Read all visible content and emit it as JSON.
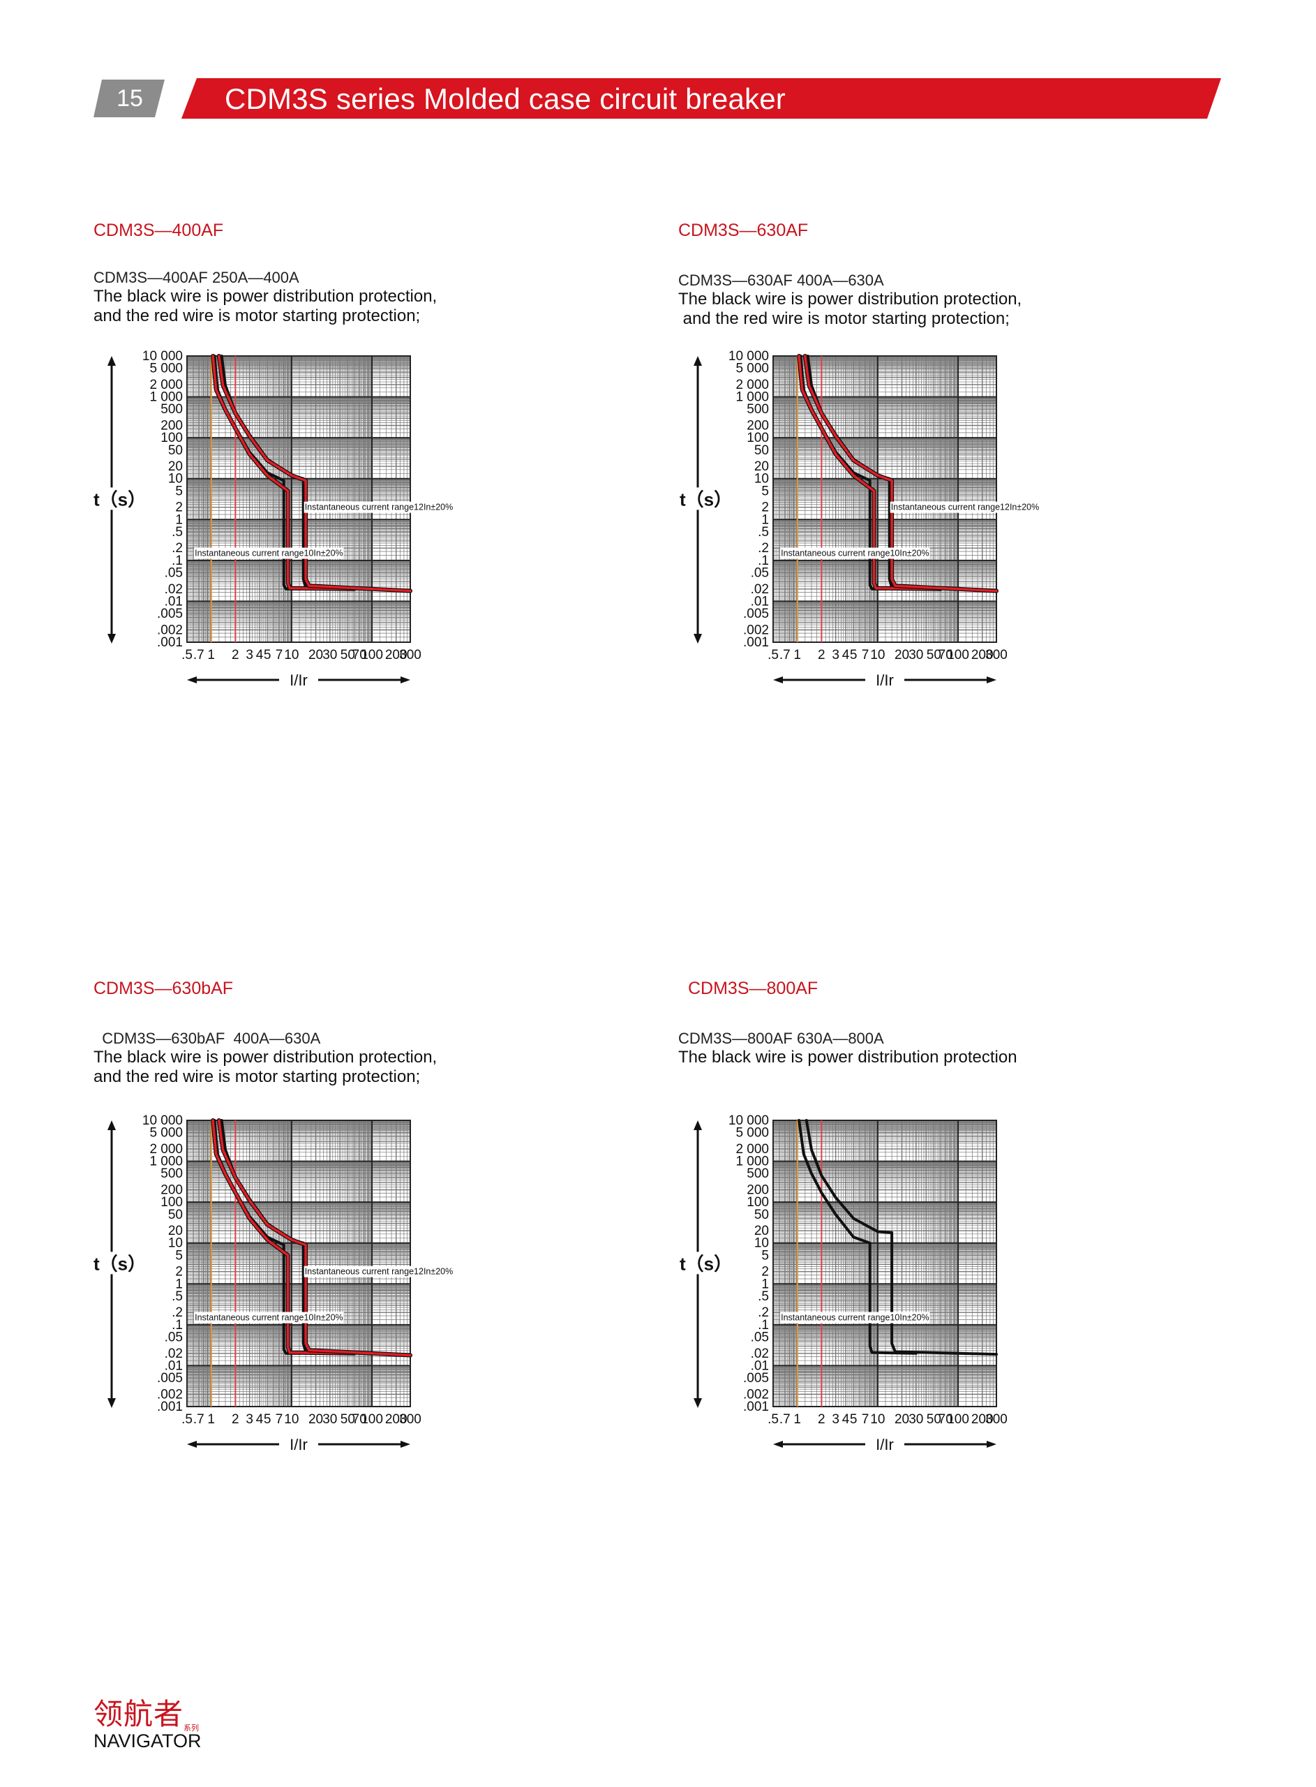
{
  "header": {
    "page_number": "15",
    "title": "CDM3S series Molded case circuit breaker",
    "accent_color": "#d7141f",
    "tab_color": "#8c8c8c"
  },
  "footer": {
    "logo_cn": "领航者",
    "logo_cn_small": "系列",
    "logo_en": "NAVIGATOR"
  },
  "sections": [
    {
      "title": "CDM3S—400AF",
      "model": "CDM3S—400AF   250A—400A",
      "desc_line1": "The black wire is power distribution protection,",
      "desc_line2": "and the red wire is motor starting protection;"
    },
    {
      "title": "CDM3S—630AF",
      "model": "CDM3S—630AF   400A—630A",
      "desc_line1": "The black wire is power distribution protection,",
      "desc_line2": " and the red wire is motor starting protection;"
    },
    {
      "title": "CDM3S—630bAF",
      "model": "  CDM3S—630bAF  400A—630A",
      "desc_line1": "The black wire is power distribution protection,",
      "desc_line2": "and the red wire is motor starting protection;"
    },
    {
      "title": "CDM3S—800AF",
      "model": "CDM3S—800AF   630A—800A",
      "desc_line1": "The black wire is power distribution protection",
      "desc_line2": ""
    }
  ],
  "chart_data": [
    {
      "type": "line",
      "title": "CDM3S—400AF",
      "xlabel": "I/Ir",
      "ylabel": "t（s）",
      "xscale": "log",
      "yscale": "log",
      "xlim": [
        0.5,
        300
      ],
      "ylim": [
        0.001,
        10000
      ],
      "x_ticks": [
        ".5",
        ".7",
        "1",
        "2",
        "3",
        "4",
        "5",
        "7",
        "10",
        "20",
        "30",
        "50",
        "70",
        "100",
        "200",
        "300"
      ],
      "y_ticks": [
        "10 000",
        "5 000",
        "2 000",
        "1 000",
        "500",
        "200",
        "100",
        "50",
        "20",
        "10",
        "5",
        "2",
        "1",
        ".5",
        ".2",
        ".1",
        ".05",
        ".02",
        ".01",
        ".005",
        ".002",
        ".001"
      ],
      "reference_lines": [
        {
          "x": 1,
          "color": "#e8a040"
        },
        {
          "x": 2,
          "color": "#e0404a"
        }
      ],
      "annotations": [
        {
          "text": "Instantaneous current range12In±20%",
          "x": 14,
          "y": 2
        },
        {
          "text": "Instantaneous current range10In±20%",
          "x": 0.6,
          "y": 0.15
        }
      ],
      "series": [
        {
          "name": "black lower",
          "color": "#111111",
          "points": [
            [
              1.1,
              10000
            ],
            [
              1.2,
              1500
            ],
            [
              1.5,
              500
            ],
            [
              2,
              180
            ],
            [
              3,
              45
            ],
            [
              5,
              14
            ],
            [
              8,
              9
            ],
            [
              8,
              0.025
            ],
            [
              8.5,
              0.02
            ],
            [
              13,
              0.02
            ]
          ]
        },
        {
          "name": "black upper",
          "color": "#111111",
          "points": [
            [
              1.35,
              10000
            ],
            [
              1.5,
              1900
            ],
            [
              2,
              420
            ],
            [
              3,
              120
            ],
            [
              5,
              30
            ],
            [
              10,
              12
            ],
            [
              14,
              10
            ],
            [
              14,
              0.035
            ],
            [
              15,
              0.022
            ],
            [
              60,
              0.02
            ]
          ]
        },
        {
          "name": "red lower",
          "color": "#e01e26",
          "points": [
            [
              1.05,
              10000
            ],
            [
              1.15,
              1500
            ],
            [
              1.5,
              480
            ],
            [
              2,
              170
            ],
            [
              3,
              40
            ],
            [
              5,
              12
            ],
            [
              9,
              5
            ],
            [
              9,
              0.028
            ],
            [
              9.5,
              0.021
            ],
            [
              60,
              0.02
            ]
          ]
        },
        {
          "name": "red upper",
          "color": "#e01e26",
          "points": [
            [
              1.25,
              10000
            ],
            [
              1.4,
              1900
            ],
            [
              2,
              400
            ],
            [
              3,
              110
            ],
            [
              5,
              28
            ],
            [
              10,
              12
            ],
            [
              15,
              9
            ],
            [
              15,
              0.035
            ],
            [
              16.5,
              0.024
            ],
            [
              300,
              0.018
            ]
          ]
        }
      ]
    },
    {
      "type": "line",
      "title": "CDM3S—630AF",
      "xlabel": "I/Ir",
      "ylabel": "t（s）",
      "xscale": "log",
      "yscale": "log",
      "xlim": [
        0.5,
        300
      ],
      "ylim": [
        0.001,
        10000
      ],
      "x_ticks": [
        ".5",
        ".7",
        "1",
        "2",
        "3",
        "4",
        "5",
        "7",
        "10",
        "20",
        "30",
        "50",
        "70",
        "100",
        "200",
        "300"
      ],
      "y_ticks": [
        "10 000",
        "5 000",
        "2 000",
        "1 000",
        "500",
        "200",
        "100",
        "50",
        "20",
        "10",
        "5",
        "2",
        "1",
        ".5",
        ".2",
        ".1",
        ".05",
        ".02",
        ".01",
        ".005",
        ".002",
        ".001"
      ],
      "reference_lines": [
        {
          "x": 1,
          "color": "#e8a040"
        },
        {
          "x": 2,
          "color": "#e0404a"
        }
      ],
      "annotations": [
        {
          "text": "Instantaneous current range12In±20%",
          "x": 14,
          "y": 2
        },
        {
          "text": "Instantaneous current range10In±20%",
          "x": 0.6,
          "y": 0.15
        }
      ],
      "series": [
        {
          "name": "black lower",
          "color": "#111111",
          "points": [
            [
              1.1,
              10000
            ],
            [
              1.2,
              1500
            ],
            [
              1.5,
              500
            ],
            [
              2,
              180
            ],
            [
              3,
              45
            ],
            [
              5,
              14
            ],
            [
              8,
              9
            ],
            [
              8,
              0.025
            ],
            [
              8.5,
              0.02
            ],
            [
              13,
              0.02
            ]
          ]
        },
        {
          "name": "black upper",
          "color": "#111111",
          "points": [
            [
              1.35,
              10000
            ],
            [
              1.5,
              1900
            ],
            [
              2,
              420
            ],
            [
              3,
              120
            ],
            [
              5,
              30
            ],
            [
              10,
              12
            ],
            [
              14,
              10
            ],
            [
              14,
              0.035
            ],
            [
              15,
              0.022
            ],
            [
              60,
              0.02
            ]
          ]
        },
        {
          "name": "red lower",
          "color": "#e01e26",
          "points": [
            [
              1.05,
              10000
            ],
            [
              1.15,
              1500
            ],
            [
              1.5,
              480
            ],
            [
              2,
              170
            ],
            [
              3,
              40
            ],
            [
              5,
              12
            ],
            [
              9,
              5
            ],
            [
              9,
              0.028
            ],
            [
              9.5,
              0.021
            ],
            [
              60,
              0.02
            ]
          ]
        },
        {
          "name": "red upper",
          "color": "#e01e26",
          "points": [
            [
              1.25,
              10000
            ],
            [
              1.4,
              1900
            ],
            [
              2,
              400
            ],
            [
              3,
              110
            ],
            [
              5,
              28
            ],
            [
              10,
              12
            ],
            [
              15,
              9
            ],
            [
              15,
              0.035
            ],
            [
              16.5,
              0.024
            ],
            [
              300,
              0.018
            ]
          ]
        }
      ]
    },
    {
      "type": "line",
      "title": "CDM3S—630bAF",
      "xlabel": "I/Ir",
      "ylabel": "t（s）",
      "xscale": "log",
      "yscale": "log",
      "xlim": [
        0.5,
        300
      ],
      "ylim": [
        0.001,
        10000
      ],
      "x_ticks": [
        ".5",
        ".7",
        "1",
        "2",
        "3",
        "4",
        "5",
        "7",
        "10",
        "20",
        "30",
        "50",
        "70",
        "100",
        "200",
        "300"
      ],
      "y_ticks": [
        "10 000",
        "5 000",
        "2 000",
        "1 000",
        "500",
        "200",
        "100",
        "50",
        "20",
        "10",
        "5",
        "2",
        "1",
        ".5",
        ".2",
        ".1",
        ".05",
        ".02",
        ".01",
        ".005",
        ".002",
        ".001"
      ],
      "reference_lines": [
        {
          "x": 1,
          "color": "#e8a040"
        },
        {
          "x": 2,
          "color": "#e0404a"
        }
      ],
      "annotations": [
        {
          "text": "Instantaneous current range12In±20%",
          "x": 14,
          "y": 2
        },
        {
          "text": "Instantaneous current range10In±20%",
          "x": 0.6,
          "y": 0.15
        }
      ],
      "series": [
        {
          "name": "black lower",
          "color": "#111111",
          "points": [
            [
              1.1,
              10000
            ],
            [
              1.2,
              1500
            ],
            [
              1.5,
              500
            ],
            [
              2,
              180
            ],
            [
              3,
              45
            ],
            [
              5,
              14
            ],
            [
              8,
              9
            ],
            [
              8,
              0.025
            ],
            [
              8.5,
              0.02
            ],
            [
              13,
              0.02
            ]
          ]
        },
        {
          "name": "black upper",
          "color": "#111111",
          "points": [
            [
              1.35,
              10000
            ],
            [
              1.5,
              1900
            ],
            [
              2,
              420
            ],
            [
              3,
              120
            ],
            [
              5,
              30
            ],
            [
              10,
              12
            ],
            [
              14,
              10
            ],
            [
              14,
              0.035
            ],
            [
              15,
              0.022
            ],
            [
              60,
              0.02
            ]
          ]
        },
        {
          "name": "red lower",
          "color": "#e01e26",
          "points": [
            [
              1.05,
              10000
            ],
            [
              1.15,
              1500
            ],
            [
              1.5,
              480
            ],
            [
              2,
              170
            ],
            [
              3,
              40
            ],
            [
              5,
              12
            ],
            [
              9,
              5
            ],
            [
              9,
              0.028
            ],
            [
              9.5,
              0.021
            ],
            [
              60,
              0.02
            ]
          ]
        },
        {
          "name": "red upper",
          "color": "#e01e26",
          "points": [
            [
              1.25,
              10000
            ],
            [
              1.4,
              1900
            ],
            [
              2,
              400
            ],
            [
              3,
              110
            ],
            [
              5,
              28
            ],
            [
              10,
              12
            ],
            [
              15,
              9
            ],
            [
              15,
              0.035
            ],
            [
              16.5,
              0.024
            ],
            [
              300,
              0.018
            ]
          ]
        }
      ]
    },
    {
      "type": "line",
      "title": "CDM3S—800AF",
      "xlabel": "I/Ir",
      "ylabel": "t（s）",
      "xscale": "log",
      "yscale": "log",
      "xlim": [
        0.5,
        300
      ],
      "ylim": [
        0.001,
        10000
      ],
      "x_ticks": [
        ".5",
        ".7",
        "1",
        "2",
        "3",
        "4",
        "5",
        "7",
        "10",
        "20",
        "30",
        "50",
        "70",
        "100",
        "200",
        "300"
      ],
      "y_ticks": [
        "10 000",
        "5 000",
        "2 000",
        "1 000",
        "500",
        "200",
        "100",
        "50",
        "20",
        "10",
        "5",
        "2",
        "1",
        ".5",
        ".2",
        ".1",
        ".05",
        ".02",
        ".01",
        ".005",
        ".002",
        ".001"
      ],
      "reference_lines": [
        {
          "x": 1,
          "color": "#e8a040"
        },
        {
          "x": 2,
          "color": "#e0404a"
        }
      ],
      "annotations": [
        {
          "text": "Instantaneous current range10In±20%",
          "x": 0.6,
          "y": 0.15
        }
      ],
      "series": [
        {
          "name": "black lower",
          "color": "#111111",
          "points": [
            [
              1.05,
              10000
            ],
            [
              1.2,
              1500
            ],
            [
              1.5,
              500
            ],
            [
              2,
              170
            ],
            [
              3,
              50
            ],
            [
              5,
              14
            ],
            [
              8,
              10
            ],
            [
              8,
              0.03
            ],
            [
              8.5,
              0.021
            ],
            [
              30,
              0.02
            ]
          ]
        },
        {
          "name": "black upper",
          "color": "#111111",
          "points": [
            [
              1.3,
              10000
            ],
            [
              1.5,
              1900
            ],
            [
              2,
              450
            ],
            [
              3,
              130
            ],
            [
              5,
              40
            ],
            [
              10,
              19
            ],
            [
              15,
              18
            ],
            [
              15,
              0.035
            ],
            [
              16.5,
              0.022
            ],
            [
              300,
              0.019
            ]
          ]
        }
      ]
    }
  ]
}
